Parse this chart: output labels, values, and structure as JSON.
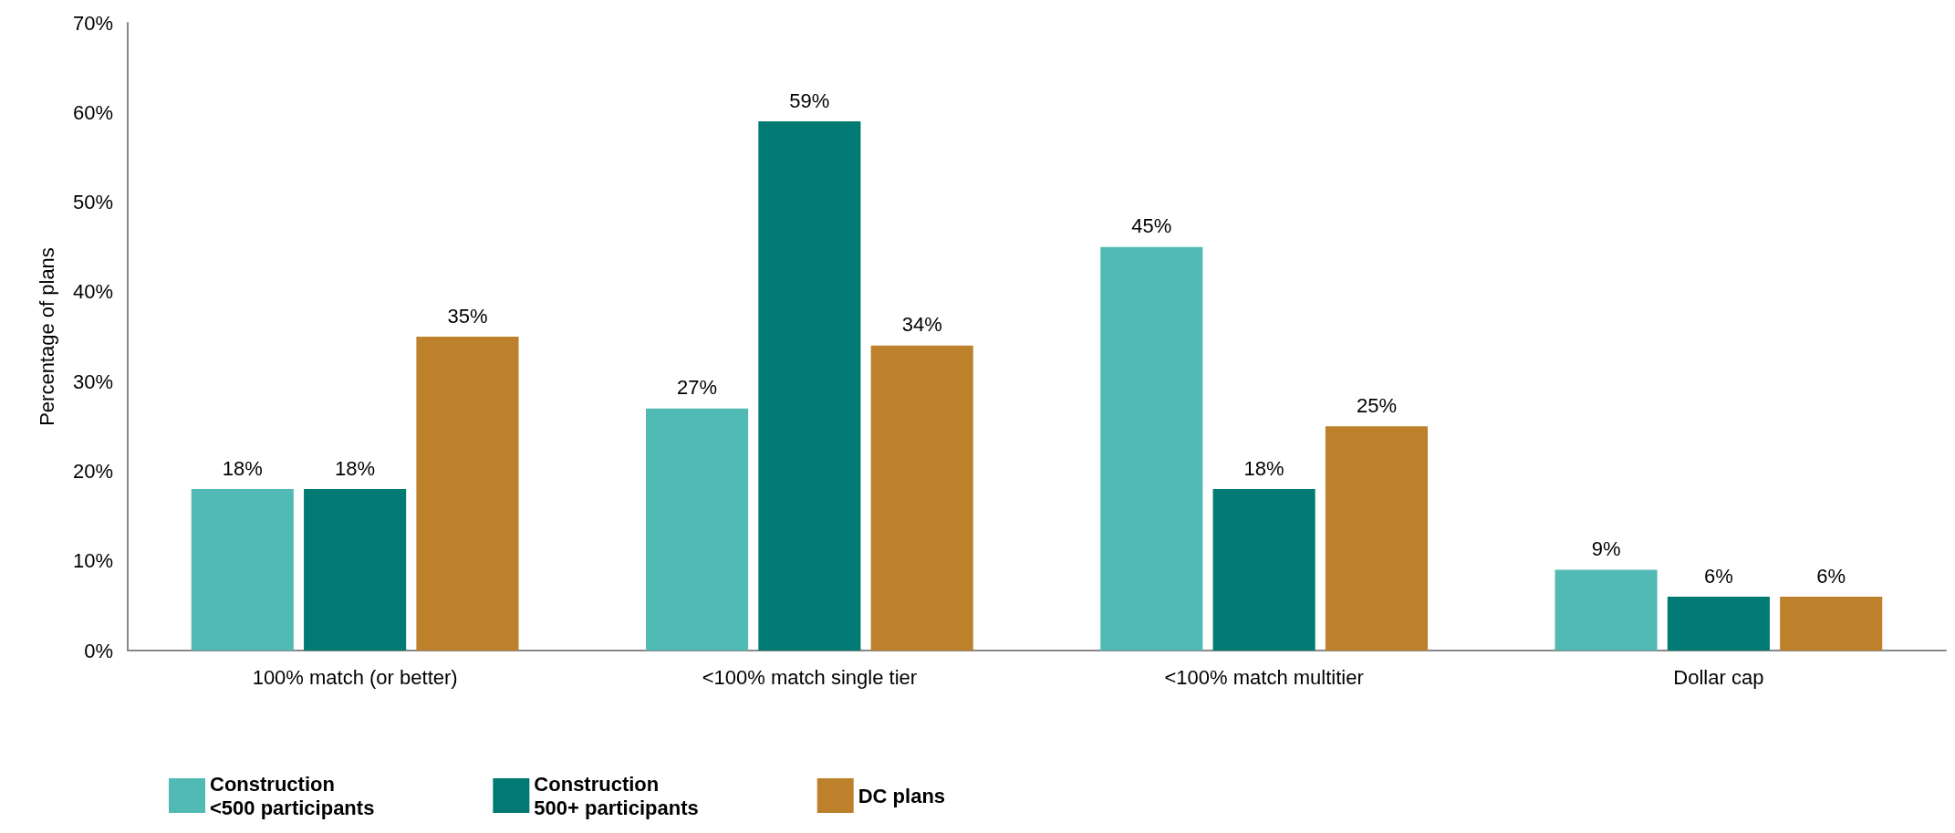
{
  "chart_data": {
    "type": "bar",
    "ylabel": "Percentage of plans",
    "categories": [
      "100% match (or better)",
      "<100% match single tier",
      "<100% match multitier",
      "Dollar cap"
    ],
    "series": [
      {
        "name": "Construction\n<500 participants",
        "color": "#52bab5",
        "values": [
          18,
          27,
          45,
          9
        ],
        "value_labels": [
          "18%",
          "27%",
          "45%",
          "9%"
        ]
      },
      {
        "name": "Construction\n500+ participants",
        "color": "#007a72",
        "values": [
          18,
          59,
          18,
          6
        ],
        "value_labels": [
          "18%",
          "59%",
          "18%",
          "6%"
        ]
      },
      {
        "name": "DC plans",
        "color": "#bd812c",
        "values": [
          35,
          34,
          25,
          6
        ],
        "value_labels": [
          "35%",
          "34%",
          "25%",
          "6%"
        ]
      }
    ],
    "ylim": [
      0,
      70
    ],
    "yticks": [
      {
        "value": 0,
        "label": "0%"
      },
      {
        "value": 10,
        "label": "10%"
      },
      {
        "value": 20,
        "label": "20%"
      },
      {
        "value": 30,
        "label": "30%"
      },
      {
        "value": 40,
        "label": "40%"
      },
      {
        "value": 50,
        "label": "50%"
      },
      {
        "value": 60,
        "label": "60%"
      },
      {
        "value": 70,
        "label": "70%"
      }
    ],
    "grid": false,
    "legend": "bottom"
  }
}
